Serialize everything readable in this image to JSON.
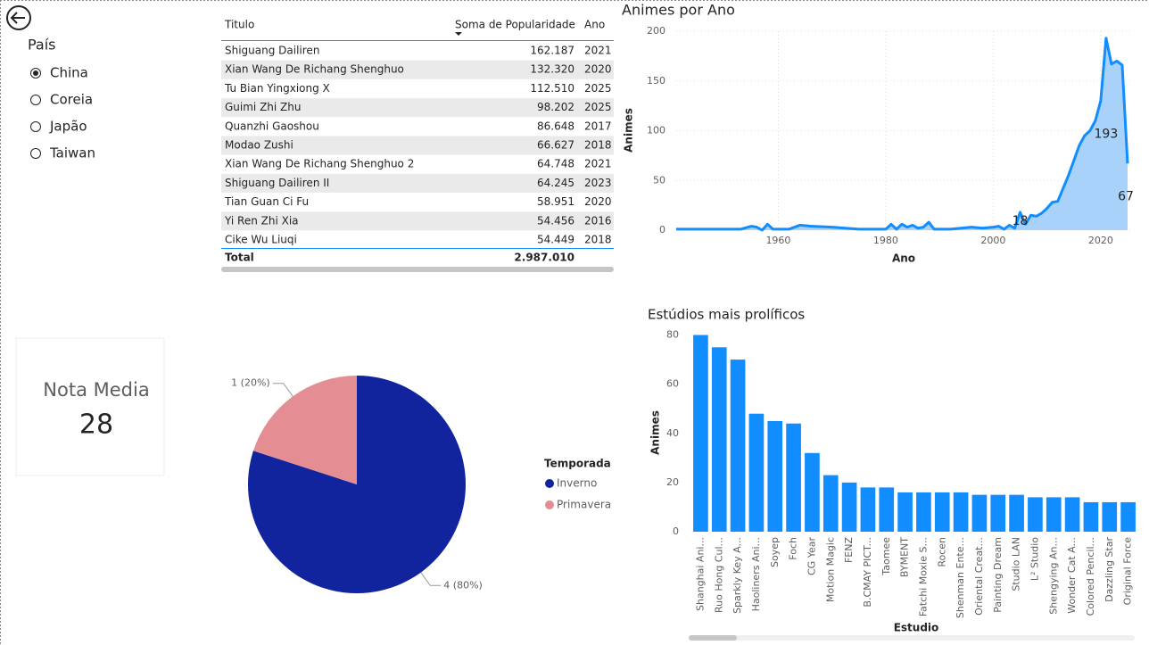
{
  "slicer": {
    "title": "País",
    "options": [
      "China",
      "Coreia",
      "Japão",
      "Taiwan"
    ]
  },
  "card": {
    "label": "Nota Media",
    "value": "28"
  },
  "table": {
    "headers": [
      "Titulo",
      "Soma de Popularidade",
      "Ano"
    ],
    "rows": [
      [
        "Shiguang Dailiren",
        "162.187",
        "2021"
      ],
      [
        "Xian Wang De Richang Shenghuo",
        "132.320",
        "2020"
      ],
      [
        "Tu Bian Yingxiong X",
        "112.510",
        "2025"
      ],
      [
        "Guimi Zhi Zhu",
        "98.202",
        "2025"
      ],
      [
        "Quanzhi Gaoshou",
        "86.648",
        "2017"
      ],
      [
        "Modao Zushi",
        "66.627",
        "2018"
      ],
      [
        "Xian Wang De Richang Shenghuo 2",
        "64.748",
        "2021"
      ],
      [
        "Shiguang Dailiren II",
        "64.245",
        "2023"
      ],
      [
        "Tian Guan Ci Fu",
        "58.951",
        "2020"
      ],
      [
        "Yi Ren Zhi Xia",
        "54.456",
        "2016"
      ],
      [
        "Cike Wu Liuqi",
        "54.449",
        "2018"
      ]
    ],
    "total": [
      "Total",
      "2.987.010"
    ]
  },
  "chart_data": [
    {
      "type": "line",
      "title": "Animes por Ano",
      "x_label": "Ano",
      "y_label": "Animes",
      "color": "#118dff",
      "area_color": "#a9d2fb",
      "x": [
        1941,
        1945,
        1950,
        1953,
        1955,
        1956,
        1957,
        1958,
        1959,
        1961,
        1962,
        1964,
        1966,
        1970,
        1975,
        1978,
        1980,
        1981,
        1982,
        1983,
        1984,
        1985,
        1986,
        1987,
        1988,
        1989,
        1992,
        1994,
        1996,
        1998,
        2000,
        2001,
        2002,
        2003,
        2004,
        2005,
        2006,
        2007,
        2008,
        2009,
        2010,
        2011,
        2012,
        2013,
        2014,
        2015,
        2016,
        2017,
        2018,
        2019,
        2020,
        2021,
        2022,
        2023,
        2024,
        2025
      ],
      "values": [
        1,
        1,
        1,
        1,
        4,
        3,
        0,
        6,
        1,
        1,
        1,
        5,
        4,
        3,
        1,
        1,
        1,
        6,
        1,
        6,
        3,
        5,
        2,
        3,
        8,
        1,
        1,
        2,
        3,
        2,
        3,
        4,
        1,
        5,
        2,
        18,
        6,
        15,
        14,
        17,
        22,
        28,
        29,
        42,
        55,
        70,
        85,
        95,
        100,
        110,
        130,
        193,
        167,
        170,
        166,
        67
      ],
      "labeled_x": [
        2005,
        2021,
        2025
      ],
      "xlim": [
        1941,
        2026
      ],
      "xticks": [
        1960,
        1980,
        2000,
        2020
      ],
      "ylim": [
        0,
        200
      ],
      "yticks": [
        0,
        50,
        100,
        150,
        200
      ],
      "grid": true
    },
    {
      "type": "pie",
      "legend_title": "Temporada",
      "categories": [
        "Inverno",
        "Primavera"
      ],
      "values": [
        4,
        1
      ],
      "value_labels": [
        "4 (80%)",
        "1 (20%)"
      ],
      "colors": [
        "#12239e",
        "#e48e93"
      ]
    },
    {
      "type": "bar",
      "title": "Estúdios mais prolíficos",
      "x_label": "Estudio",
      "y_label": "Animes",
      "color": "#118dff",
      "categories": [
        "Shanghai Ani...",
        "Ruo Hong Cul...",
        "Sparkly Key A...",
        "Haoliners Ani...",
        "Soyep",
        "Foch",
        "CG Year",
        "Motion Magic",
        "FENZ",
        "B.CMAY PICT...",
        "Taomee",
        "BYMENT",
        "Fatchi Moxie S...",
        "Rocen",
        "Shenman Ente...",
        "Oriental Creat...",
        "Painting Dream",
        "Studio LAN",
        "L² Studio",
        "Shengying An...",
        "Wonder Cat A...",
        "Colored Pencil...",
        "Dazzling Star",
        "Original Force"
      ],
      "values": [
        80,
        75,
        70,
        48,
        45,
        44,
        32,
        23,
        20,
        18,
        18,
        16,
        16,
        16,
        16,
        15,
        15,
        15,
        14,
        14,
        14,
        12,
        12,
        12
      ],
      "ylim": [
        0,
        82
      ],
      "yticks": [
        0,
        20,
        40,
        60,
        80
      ],
      "grid": false
    }
  ]
}
